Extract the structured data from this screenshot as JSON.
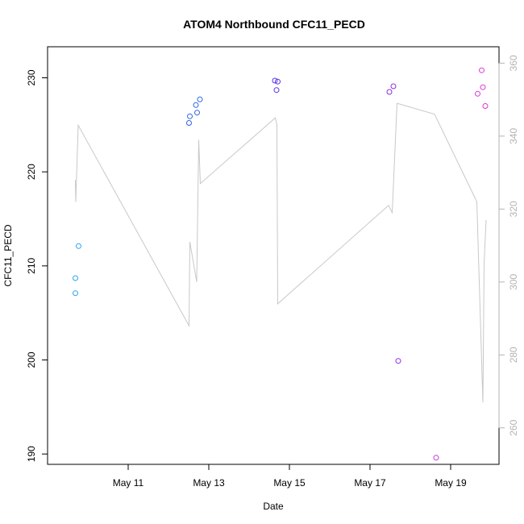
{
  "chart_data": {
    "type": "scatter",
    "title": "ATOM4 Northbound CFC11_PECD",
    "xlabel": "Date",
    "ylabel": "CFC11_PECD",
    "x_ticks": [
      "May 11",
      "May 13",
      "May 15",
      "May 17",
      "May 19"
    ],
    "x_tick_values": [
      11,
      13,
      15,
      17,
      19
    ],
    "xlim": [
      9.0,
      20.2
    ],
    "ylim": [
      188.9,
      233.3
    ],
    "y_ticks": [
      190,
      200,
      210,
      220,
      230
    ],
    "y2lim": [
      250.0,
      364.5
    ],
    "y2_ticks": [
      260,
      280,
      300,
      320,
      340,
      360
    ],
    "colors": {
      "line": "#c8c8c8",
      "axis": "#000000",
      "right_axis": "#b3b3b3"
    },
    "points": [
      {
        "x": 9.69,
        "y": 208.7,
        "color": "#29a3f0"
      },
      {
        "x": 9.69,
        "y": 207.1,
        "color": "#29a3f0"
      },
      {
        "x": 9.77,
        "y": 212.1,
        "color": "#29a3f0"
      },
      {
        "x": 12.51,
        "y": 225.2,
        "color": "#2b63e8"
      },
      {
        "x": 12.53,
        "y": 225.9,
        "color": "#2b63e8"
      },
      {
        "x": 12.68,
        "y": 227.1,
        "color": "#2b63e8"
      },
      {
        "x": 12.71,
        "y": 226.3,
        "color": "#2b63e8"
      },
      {
        "x": 12.78,
        "y": 227.7,
        "color": "#2b63e8"
      },
      {
        "x": 14.64,
        "y": 229.7,
        "color": "#5a2fe6"
      },
      {
        "x": 14.71,
        "y": 229.6,
        "color": "#5a2fe6"
      },
      {
        "x": 14.68,
        "y": 228.7,
        "color": "#5a2fe6"
      },
      {
        "x": 17.48,
        "y": 228.5,
        "color": "#8a2fe0"
      },
      {
        "x": 17.58,
        "y": 229.1,
        "color": "#8a2fe0"
      },
      {
        "x": 17.7,
        "y": 199.9,
        "color": "#8a2fe0"
      },
      {
        "x": 18.64,
        "y": 189.6,
        "color": "#c23ad8"
      },
      {
        "x": 19.67,
        "y": 228.3,
        "color": "#d63ad6"
      },
      {
        "x": 19.77,
        "y": 230.8,
        "color": "#d63ad6"
      },
      {
        "x": 19.8,
        "y": 229.0,
        "color": "#d63ad6"
      },
      {
        "x": 19.86,
        "y": 227.0,
        "color": "#d63ad6"
      }
    ],
    "line_series": {
      "x": [
        9.69,
        9.7,
        9.76,
        12.51,
        12.53,
        12.7,
        12.75,
        12.79,
        14.65,
        14.69,
        14.71,
        17.46,
        17.55,
        17.67,
        18.6,
        19.65,
        19.8,
        19.83,
        19.88
      ],
      "y2": [
        328,
        322,
        343,
        288,
        311,
        300,
        339,
        327,
        345,
        343,
        294,
        321,
        319,
        349,
        346,
        322,
        267,
        305,
        317
      ]
    }
  }
}
